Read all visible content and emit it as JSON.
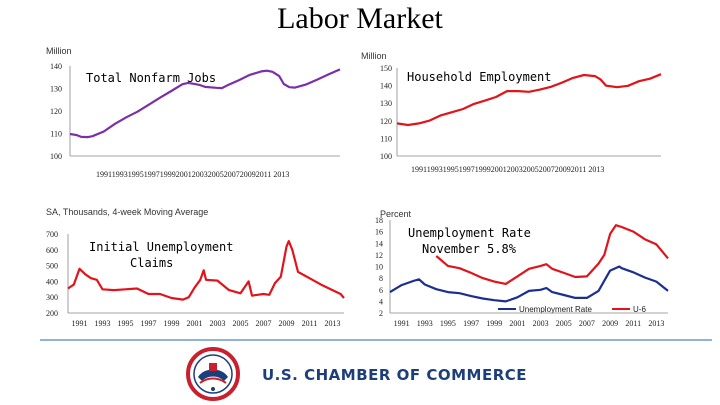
{
  "slide": {
    "title": "Labor Market",
    "organization": "U.S. CHAMBER OF COMMERCE",
    "seal_text": "CHAMBER OF COMMERCE OF THE UNITED STATES OF AMERICA"
  },
  "chart_data": [
    {
      "type": "line",
      "unit_label": "Million",
      "annotation": [
        "Total Nonfarm Jobs"
      ],
      "ylim": [
        100,
        140
      ],
      "yticks": [
        100,
        110,
        120,
        130,
        140
      ],
      "xlim": [
        1990,
        2014
      ],
      "x_tick_label": "19911993199519971999200120032005200720092011 2013",
      "series": [
        {
          "color": "#7b2fa8",
          "x": [
            1990,
            1990.6,
            1991,
            1991.6,
            1992,
            1993,
            1994,
            1995,
            1996,
            1997,
            1998,
            1999,
            2000,
            2000.5,
            2001,
            2001.5,
            2002,
            2003,
            2003.5,
            2004,
            2005,
            2006,
            2007,
            2007.5,
            2008,
            2008.6,
            2009,
            2009.5,
            2010,
            2011,
            2012,
            2013,
            2014
          ],
          "y": [
            109.8,
            109.3,
            108.5,
            108.4,
            108.8,
            110.9,
            114.3,
            117.2,
            119.7,
            122.8,
            125.9,
            128.9,
            131.9,
            132.5,
            132.1,
            131.6,
            130.7,
            130.3,
            130.2,
            131.4,
            133.7,
            136.1,
            137.6,
            137.9,
            137.4,
            135.5,
            132.0,
            130.6,
            130.4,
            131.8,
            134.0,
            136.3,
            138.5
          ]
        }
      ]
    },
    {
      "type": "line",
      "unit_label": "Million",
      "annotation": [
        "Household Employment"
      ],
      "ylim": [
        100,
        150
      ],
      "yticks": [
        100,
        110,
        120,
        130,
        140,
        150
      ],
      "xlim": [
        1990,
        2014
      ],
      "x_tick_label": "19911993199519971999200120032005200720092011 2013",
      "series": [
        {
          "color": "#e0141b",
          "x": [
            1990,
            1991,
            1992,
            1993,
            1994,
            1995,
            1996,
            1997,
            1998,
            1999,
            2000,
            2001,
            2002,
            2003,
            2004,
            2005,
            2006,
            2007,
            2008,
            2008.5,
            2009,
            2010,
            2011,
            2012,
            2013,
            2014
          ],
          "y": [
            118.5,
            117.6,
            118.5,
            120.2,
            123.1,
            124.9,
            126.7,
            129.6,
            131.5,
            133.5,
            136.9,
            136.9,
            136.5,
            137.7,
            139.3,
            141.7,
            144.4,
            146.0,
            145.4,
            143.5,
            140.0,
            139.1,
            139.9,
            142.5,
            143.9,
            146.5
          ]
        }
      ]
    },
    {
      "type": "line",
      "unit_label": "SA, Thousands, 4-week Moving Average",
      "annotation": [
        "Initial Unemployment",
        "Claims"
      ],
      "ylim": [
        200,
        700
      ],
      "yticks": [
        200,
        300,
        400,
        500,
        600,
        700
      ],
      "xlim": [
        1990,
        2014
      ],
      "xticks": [
        "1991",
        "1993",
        "1995",
        "1997",
        "1999",
        "2001",
        "2003",
        "2005",
        "2007",
        "2009",
        "2011",
        "2013"
      ],
      "series": [
        {
          "color": "#e0141b",
          "x": [
            1990,
            1990.5,
            1991,
            1991.5,
            1992,
            1992.5,
            1993,
            1994,
            1995,
            1996,
            1997,
            1998,
            1999,
            2000,
            2000.5,
            2001,
            2001.5,
            2001.8,
            2002,
            2003,
            2004,
            2005,
            2005.7,
            2006,
            2007,
            2007.5,
            2008,
            2008.5,
            2009,
            2009.2,
            2009.5,
            2010,
            2011,
            2012,
            2013,
            2013.7,
            2014
          ],
          "y": [
            355,
            380,
            480,
            445,
            420,
            410,
            350,
            345,
            350,
            355,
            320,
            320,
            295,
            285,
            300,
            360,
            410,
            470,
            410,
            405,
            345,
            325,
            400,
            310,
            320,
            315,
            390,
            430,
            620,
            655,
            600,
            460,
            420,
            380,
            345,
            320,
            295
          ]
        }
      ]
    },
    {
      "type": "line",
      "unit_label": "Percent",
      "annotation": [
        "Unemployment Rate",
        "November 5.8%"
      ],
      "ylim": [
        2,
        18
      ],
      "yticks": [
        2,
        4,
        6,
        8,
        10,
        12,
        14,
        16,
        18
      ],
      "xlim": [
        1990,
        2014
      ],
      "xticks": [
        "1991",
        "1993",
        "1995",
        "1997",
        "1999",
        "2001",
        "2003",
        "2005",
        "2007",
        "2009",
        "2011",
        "2013"
      ],
      "legend": {
        "placement": "bottom-right"
      },
      "series": [
        {
          "name": "Unemployment Rate",
          "color": "#1b2f8f",
          "x": [
            1990,
            1991,
            1992,
            1992.5,
            1993,
            1994,
            1995,
            1996,
            1997,
            1998,
            1999,
            2000,
            2001,
            2002,
            2003,
            2003.5,
            2004,
            2005,
            2006,
            2007,
            2008,
            2009,
            2009.8,
            2010,
            2011,
            2012,
            2013,
            2014
          ],
          "y": [
            5.6,
            6.8,
            7.5,
            7.8,
            6.9,
            6.1,
            5.6,
            5.4,
            4.9,
            4.5,
            4.2,
            4.0,
            4.7,
            5.8,
            6.0,
            6.3,
            5.6,
            5.1,
            4.6,
            4.6,
            5.8,
            9.3,
            10.0,
            9.7,
            9.0,
            8.1,
            7.4,
            5.8
          ]
        },
        {
          "name": "U-6",
          "color": "#e0141b",
          "x": [
            1994,
            1995,
            1996,
            1997,
            1998,
            1999,
            2000,
            2001,
            2002,
            2003,
            2003.5,
            2004,
            2005,
            2006,
            2007,
            2008,
            2008.5,
            2009,
            2009.5,
            2010,
            2011,
            2012,
            2013,
            2014
          ],
          "y": [
            11.8,
            10.1,
            9.7,
            8.9,
            8.0,
            7.4,
            7.0,
            8.3,
            9.6,
            10.1,
            10.4,
            9.6,
            8.9,
            8.2,
            8.3,
            10.5,
            12.0,
            15.6,
            17.1,
            16.8,
            16.0,
            14.7,
            13.8,
            11.4
          ]
        }
      ]
    }
  ]
}
